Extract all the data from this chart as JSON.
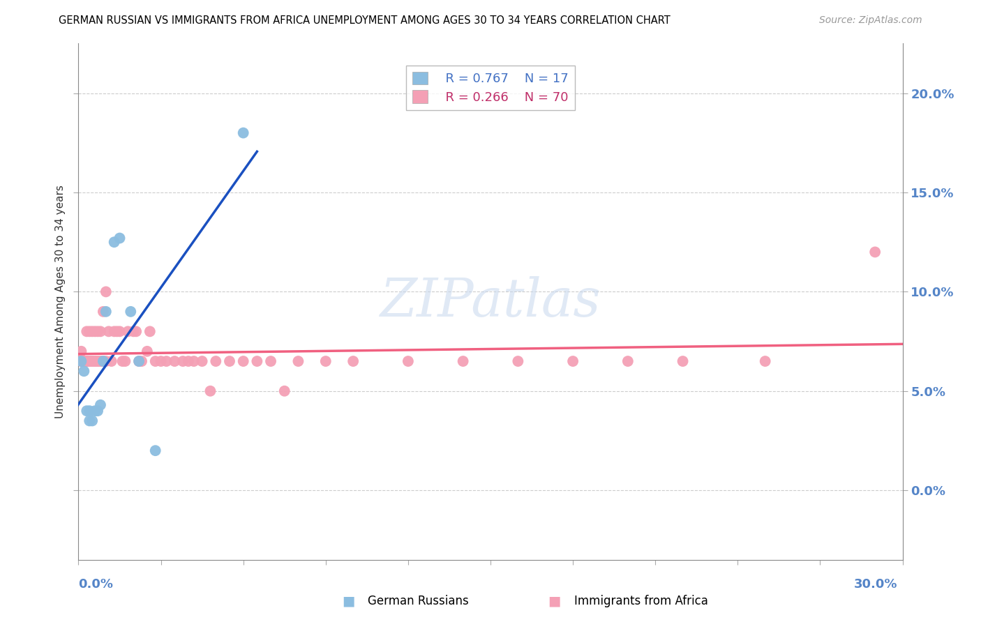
{
  "title": "GERMAN RUSSIAN VS IMMIGRANTS FROM AFRICA UNEMPLOYMENT AMONG AGES 30 TO 34 YEARS CORRELATION CHART",
  "source": "Source: ZipAtlas.com",
  "ylabel": "Unemployment Among Ages 30 to 34 years",
  "xlim": [
    0.0,
    0.3
  ],
  "ylim": [
    -0.035,
    0.225
  ],
  "legend_r1": "R = 0.767",
  "legend_n1": "N = 17",
  "legend_r2": "R = 0.266",
  "legend_n2": "N = 70",
  "color_blue": "#8bbde0",
  "color_pink": "#f4a0b5",
  "color_line_blue": "#1a50c0",
  "color_line_pink": "#f06080",
  "color_axis_labels": "#5585c8",
  "gr_x": [
    0.001,
    0.002,
    0.003,
    0.004,
    0.004,
    0.005,
    0.006,
    0.007,
    0.008,
    0.009,
    0.01,
    0.013,
    0.015,
    0.019,
    0.022,
    0.028,
    0.06
  ],
  "gr_y": [
    0.065,
    0.06,
    0.04,
    0.04,
    0.035,
    0.035,
    0.04,
    0.04,
    0.043,
    0.065,
    0.09,
    0.125,
    0.127,
    0.09,
    0.065,
    0.02,
    0.18
  ],
  "af_x": [
    0.001,
    0.001,
    0.001,
    0.002,
    0.002,
    0.002,
    0.003,
    0.003,
    0.003,
    0.003,
    0.004,
    0.004,
    0.004,
    0.005,
    0.005,
    0.005,
    0.005,
    0.006,
    0.006,
    0.006,
    0.007,
    0.007,
    0.007,
    0.008,
    0.008,
    0.008,
    0.009,
    0.009,
    0.01,
    0.01,
    0.011,
    0.012,
    0.013,
    0.014,
    0.015,
    0.016,
    0.017,
    0.018,
    0.02,
    0.021,
    0.022,
    0.023,
    0.025,
    0.026,
    0.028,
    0.03,
    0.032,
    0.035,
    0.038,
    0.04,
    0.042,
    0.045,
    0.048,
    0.05,
    0.055,
    0.06,
    0.065,
    0.07,
    0.075,
    0.08,
    0.09,
    0.1,
    0.12,
    0.14,
    0.16,
    0.18,
    0.2,
    0.22,
    0.25,
    0.29
  ],
  "af_y": [
    0.065,
    0.065,
    0.07,
    0.065,
    0.065,
    0.065,
    0.065,
    0.065,
    0.065,
    0.08,
    0.065,
    0.065,
    0.08,
    0.065,
    0.065,
    0.065,
    0.08,
    0.065,
    0.065,
    0.08,
    0.065,
    0.065,
    0.08,
    0.065,
    0.065,
    0.08,
    0.065,
    0.09,
    0.065,
    0.1,
    0.08,
    0.065,
    0.08,
    0.08,
    0.08,
    0.065,
    0.065,
    0.08,
    0.08,
    0.08,
    0.065,
    0.065,
    0.07,
    0.08,
    0.065,
    0.065,
    0.065,
    0.065,
    0.065,
    0.065,
    0.065,
    0.065,
    0.05,
    0.065,
    0.065,
    0.065,
    0.065,
    0.065,
    0.05,
    0.065,
    0.065,
    0.065,
    0.065,
    0.065,
    0.065,
    0.065,
    0.065,
    0.065,
    0.065,
    0.12
  ]
}
